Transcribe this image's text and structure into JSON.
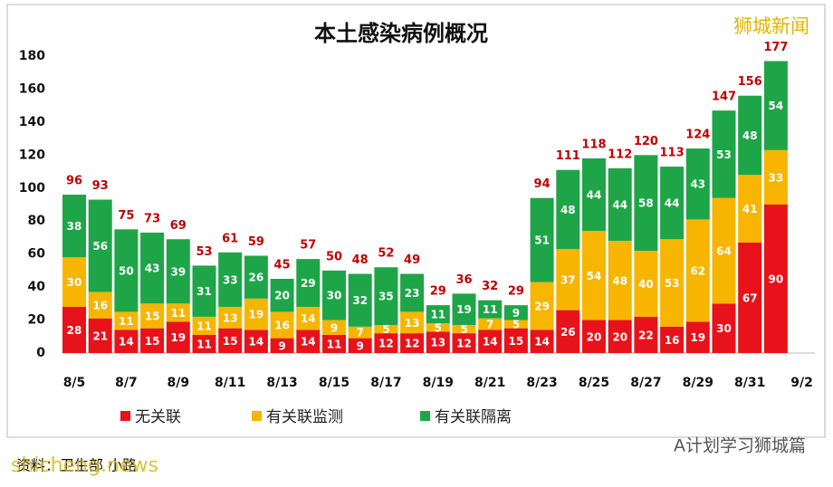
{
  "chart_data": {
    "type": "stacked-bar",
    "title": "本土感染病例概况",
    "categories": [
      "8/5",
      null,
      "8/7",
      null,
      "8/9",
      null,
      "8/11",
      null,
      "8/13",
      null,
      "8/15",
      null,
      "8/17",
      null,
      "8/19",
      null,
      "8/21",
      null,
      "8/23",
      null,
      "8/25",
      null,
      "8/27",
      null,
      "8/29",
      null,
      "8/31",
      null,
      "9/2"
    ],
    "series": [
      {
        "name": "无关联",
        "color": "#e8121b",
        "values": [
          28,
          21,
          14,
          15,
          19,
          11,
          15,
          14,
          9,
          14,
          11,
          9,
          12,
          12,
          13,
          12,
          14,
          15,
          14,
          26,
          20,
          20,
          22,
          16,
          19,
          30,
          67,
          90,
          null
        ]
      },
      {
        "name": "有关联监测",
        "color": "#f7b500",
        "values": [
          30,
          16,
          11,
          15,
          11,
          11,
          13,
          19,
          16,
          14,
          9,
          7,
          5,
          13,
          5,
          5,
          7,
          5,
          29,
          37,
          54,
          48,
          40,
          53,
          62,
          64,
          41,
          33,
          null
        ]
      },
      {
        "name": "有关联隔离",
        "color": "#1ea548",
        "values": [
          38,
          56,
          50,
          43,
          39,
          31,
          33,
          26,
          20,
          29,
          30,
          32,
          35,
          23,
          11,
          19,
          11,
          9,
          51,
          48,
          44,
          44,
          58,
          44,
          43,
          53,
          48,
          54,
          null
        ]
      }
    ],
    "totals": [
      96,
      93,
      75,
      73,
      69,
      53,
      61,
      59,
      45,
      57,
      50,
      48,
      52,
      49,
      29,
      36,
      32,
      29,
      94,
      111,
      118,
      112,
      120,
      113,
      124,
      147,
      156,
      177,
      null
    ],
    "ylim": [
      0,
      180
    ],
    "yticks": [
      0,
      20,
      40,
      60,
      80,
      100,
      120,
      140,
      160,
      180
    ],
    "watermark": "狮城新闻",
    "source": "资料：卫生部 小路",
    "site": "shicheng.news",
    "account": "A计划学习狮城篇"
  }
}
